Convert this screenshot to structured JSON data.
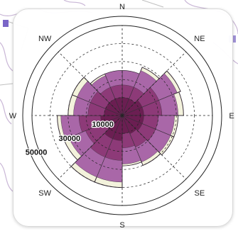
{
  "chart_data": {
    "type": "polar-bar",
    "directions": [
      "N",
      "NE",
      "E",
      "SE",
      "S",
      "SW",
      "W",
      "NW"
    ],
    "sector_labels": [
      "N",
      "NE",
      "E",
      "SE",
      "S",
      "SW",
      "W",
      "NW"
    ],
    "radial_ticks": [
      {
        "value": 10000,
        "label": "10000"
      },
      {
        "value": 30000,
        "label": "30000"
      },
      {
        "value": 50000,
        "label": "50000"
      }
    ],
    "r_max": 50000,
    "stack_bands": [
      {
        "color": "#6b1e52"
      },
      {
        "color": "#8d3a78"
      },
      {
        "color": "#a967a8"
      },
      {
        "color": "#f3f2dc"
      }
    ],
    "sectors": [
      {
        "direction": "N",
        "bands": [
          10000,
          17000,
          25000,
          25000
        ]
      },
      {
        "direction": "NNE",
        "bands": [
          10000,
          17000,
          27000,
          29000
        ]
      },
      {
        "direction": "NE",
        "bands": [
          12000,
          22000,
          33000,
          35000
        ]
      },
      {
        "direction": "ENE",
        "bands": [
          12000,
          22000,
          31000,
          34000
        ]
      },
      {
        "direction": "E",
        "bands": [
          12000,
          20000,
          29000,
          31000
        ]
      },
      {
        "direction": "ESE",
        "bands": [
          12000,
          20000,
          29000,
          31000
        ]
      },
      {
        "direction": "SE",
        "bands": [
          11000,
          19000,
          28000,
          30000
        ]
      },
      {
        "direction": "SSE",
        "bands": [
          10000,
          18000,
          27000,
          28000
        ]
      },
      {
        "direction": "S",
        "bands": [
          14000,
          25000,
          37000,
          40000
        ]
      },
      {
        "direction": "SSW",
        "bands": [
          14000,
          25000,
          37000,
          40000
        ]
      },
      {
        "direction": "SW",
        "bands": [
          10000,
          22000,
          32000,
          35000
        ]
      },
      {
        "direction": "WSW",
        "bands": [
          12000,
          24000,
          34000,
          36000
        ]
      },
      {
        "direction": "W",
        "bands": [
          10000,
          19000,
          27000,
          30000
        ]
      },
      {
        "direction": "WNW",
        "bands": [
          10000,
          19000,
          27000,
          30000
        ]
      },
      {
        "direction": "NW",
        "bands": [
          10000,
          17000,
          24000,
          25000
        ]
      },
      {
        "direction": "NNW",
        "bands": [
          10000,
          17000,
          25000,
          25000
        ]
      }
    ],
    "grid": true
  }
}
